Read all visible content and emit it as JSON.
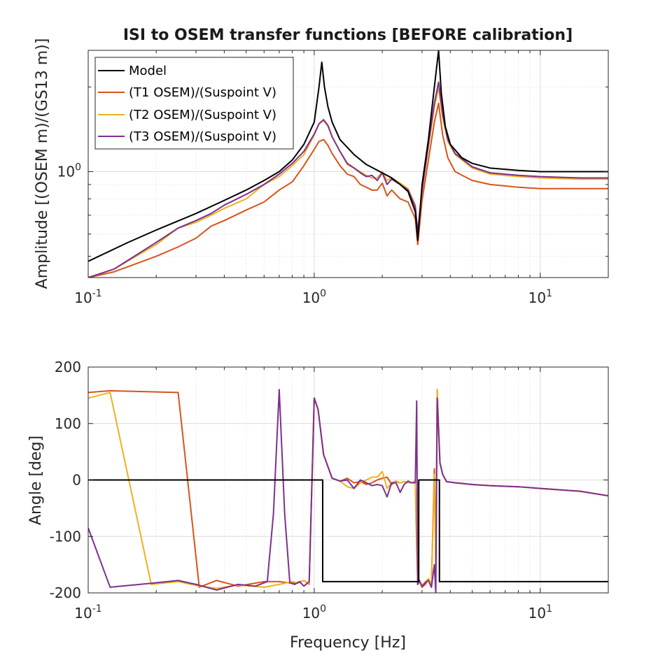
{
  "chart_data": [
    {
      "type": "line",
      "title": "ISI to OSEM transfer functions [BEFORE calibration]",
      "xlabel": "",
      "ylabel": "Amplitude [(OSEM m)/(GS13 m)]",
      "xscale": "log",
      "yscale": "log",
      "xlim": [
        0.1,
        20
      ],
      "ylim": [
        0.42,
        2.7
      ],
      "x_ticks": [
        0.1,
        1,
        10
      ],
      "x_tick_labels": [
        {
          "base": "10",
          "exp": "-1"
        },
        {
          "base": "10",
          "exp": "0"
        },
        {
          "base": "10",
          "exp": "1"
        }
      ],
      "y_ticks": [
        1
      ],
      "y_tick_labels": [
        {
          "base": "10",
          "exp": "0"
        }
      ],
      "grid": true,
      "legend_position": "top-left",
      "colors": {
        "Model": "#000000",
        "T1": "#d95319",
        "T2": "#edb120",
        "T3": "#7e2f8e"
      },
      "series": [
        {
          "name": "Model",
          "color": "#000000",
          "x": [
            0.1,
            0.15,
            0.2,
            0.3,
            0.4,
            0.5,
            0.6,
            0.7,
            0.8,
            0.9,
            1.0,
            1.05,
            1.08,
            1.11,
            1.15,
            1.2,
            1.3,
            1.5,
            1.7,
            2.0,
            2.2,
            2.4,
            2.6,
            2.8,
            2.87,
            3.0,
            3.2,
            3.4,
            3.55,
            3.65,
            3.8,
            4.0,
            4.5,
            5,
            6,
            8,
            10,
            15,
            20
          ],
          "y": [
            0.48,
            0.56,
            0.62,
            0.71,
            0.79,
            0.86,
            0.93,
            1.0,
            1.1,
            1.25,
            1.5,
            2.0,
            2.45,
            2.0,
            1.7,
            1.5,
            1.3,
            1.15,
            1.06,
            0.99,
            0.95,
            0.9,
            0.85,
            0.72,
            0.57,
            0.9,
            1.3,
            2.0,
            2.7,
            1.9,
            1.45,
            1.25,
            1.12,
            1.07,
            1.03,
            1.01,
            1.0,
            1.0,
            1.0
          ]
        },
        {
          "name": "(T1 OSEM)/(Suspoint V)",
          "color": "#d95319",
          "x": [
            0.1,
            0.13,
            0.2,
            0.25,
            0.3,
            0.35,
            0.4,
            0.5,
            0.6,
            0.7,
            0.8,
            0.9,
            1.0,
            1.05,
            1.1,
            1.15,
            1.2,
            1.3,
            1.4,
            1.5,
            1.6,
            1.7,
            1.8,
            1.9,
            2.0,
            2.1,
            2.2,
            2.4,
            2.6,
            2.8,
            2.87,
            3.0,
            3.2,
            3.4,
            3.55,
            3.7,
            3.9,
            4.2,
            5,
            6,
            8,
            10,
            15,
            20
          ],
          "y": [
            0.42,
            0.44,
            0.5,
            0.54,
            0.58,
            0.64,
            0.67,
            0.73,
            0.78,
            0.86,
            0.92,
            1.05,
            1.2,
            1.28,
            1.3,
            1.24,
            1.16,
            1.05,
            0.98,
            0.96,
            0.9,
            0.88,
            0.86,
            0.86,
            0.91,
            0.82,
            0.86,
            0.8,
            0.78,
            0.68,
            0.55,
            0.79,
            1.1,
            1.5,
            1.75,
            1.35,
            1.12,
            1.0,
            0.93,
            0.9,
            0.88,
            0.87,
            0.87,
            0.87
          ]
        },
        {
          "name": "(T2 OSEM)/(Suspoint V)",
          "color": "#edb120",
          "x": [
            0.1,
            0.13,
            0.2,
            0.25,
            0.3,
            0.35,
            0.4,
            0.5,
            0.6,
            0.7,
            0.8,
            0.9,
            1.0,
            1.05,
            1.1,
            1.15,
            1.2,
            1.3,
            1.4,
            1.5,
            1.6,
            1.7,
            1.8,
            1.9,
            2.0,
            2.1,
            2.2,
            2.4,
            2.6,
            2.8,
            2.87,
            3.0,
            3.2,
            3.4,
            3.55,
            3.7,
            3.9,
            4.2,
            5,
            6,
            8,
            10,
            15,
            20
          ],
          "y": [
            0.42,
            0.45,
            0.55,
            0.63,
            0.66,
            0.7,
            0.74,
            0.8,
            0.9,
            0.96,
            1.05,
            1.15,
            1.35,
            1.48,
            1.52,
            1.45,
            1.33,
            1.18,
            1.06,
            1.03,
            1.0,
            0.97,
            0.95,
            0.95,
            1.0,
            0.93,
            0.95,
            0.91,
            0.87,
            0.76,
            0.6,
            0.85,
            1.22,
            1.7,
            1.98,
            1.55,
            1.28,
            1.15,
            1.03,
            0.98,
            0.96,
            0.95,
            0.94,
            0.94
          ]
        },
        {
          "name": "(T3 OSEM)/(Suspoint V)",
          "color": "#7e2f8e",
          "x": [
            0.1,
            0.13,
            0.2,
            0.25,
            0.3,
            0.35,
            0.4,
            0.5,
            0.6,
            0.7,
            0.8,
            0.9,
            1.0,
            1.05,
            1.1,
            1.15,
            1.2,
            1.3,
            1.4,
            1.5,
            1.6,
            1.7,
            1.8,
            1.9,
            2.0,
            2.1,
            2.2,
            2.4,
            2.6,
            2.8,
            2.87,
            3.0,
            3.2,
            3.4,
            3.55,
            3.7,
            3.9,
            4.2,
            5,
            6,
            8,
            10,
            15,
            20
          ],
          "y": [
            0.42,
            0.45,
            0.56,
            0.63,
            0.67,
            0.71,
            0.76,
            0.83,
            0.9,
            0.98,
            1.07,
            1.18,
            1.36,
            1.48,
            1.53,
            1.46,
            1.33,
            1.18,
            1.07,
            1.03,
            0.99,
            0.96,
            0.97,
            0.93,
            0.99,
            0.9,
            0.94,
            0.9,
            0.86,
            0.75,
            0.61,
            0.86,
            1.25,
            1.75,
            2.08,
            1.6,
            1.3,
            1.16,
            1.04,
            0.99,
            0.97,
            0.96,
            0.95,
            0.95
          ]
        }
      ]
    },
    {
      "type": "line",
      "title": "",
      "xlabel": "Frequency [Hz]",
      "ylabel": "Angle [deg]",
      "xscale": "log",
      "yscale": "linear",
      "xlim": [
        0.1,
        20
      ],
      "ylim": [
        -200,
        200
      ],
      "x_ticks": [
        0.1,
        1,
        10
      ],
      "x_tick_labels": [
        {
          "base": "10",
          "exp": "-1"
        },
        {
          "base": "10",
          "exp": "0"
        },
        {
          "base": "10",
          "exp": "1"
        }
      ],
      "y_ticks": [
        -200,
        -100,
        0,
        100,
        200
      ],
      "y_tick_labels": [
        "-200",
        "-100",
        "0",
        "100",
        "200"
      ],
      "grid": true,
      "series": [
        {
          "name": "Model",
          "color": "#000000",
          "x": [
            0.1,
            1.09,
            1.09,
            2.9,
            2.9,
            3.58,
            3.58,
            20
          ],
          "y": [
            0,
            0,
            -180,
            -180,
            0,
            0,
            -180,
            -180
          ]
        },
        {
          "name": "(T1 OSEM)/(Suspoint V)",
          "color": "#d95319",
          "x": [
            0.1,
            0.125,
            0.25,
            0.31,
            0.37,
            0.46,
            0.6,
            0.7,
            0.8,
            0.85,
            0.9,
            0.95,
            1.0,
            1.04,
            1.1,
            1.2,
            1.3,
            1.4,
            1.5,
            1.6,
            1.7,
            1.8,
            1.9,
            2.0,
            2.1,
            2.2,
            2.3,
            2.4,
            2.5,
            2.6,
            2.7,
            2.8,
            2.84,
            2.87,
            2.92,
            3.0,
            3.1,
            3.2,
            3.3,
            3.4,
            3.45,
            3.5,
            3.6,
            3.7,
            3.85,
            4.2,
            5,
            6,
            8,
            10,
            15,
            20
          ],
          "y": [
            155,
            158,
            155,
            -190,
            -178,
            -188,
            -180,
            -180,
            -183,
            -182,
            -178,
            -185,
            145,
            125,
            45,
            3,
            -2,
            3,
            -5,
            -3,
            -8,
            -5,
            0,
            3,
            5,
            -8,
            -3,
            -5,
            -3,
            -5,
            -5,
            -2,
            -115,
            -185,
            -180,
            -190,
            -185,
            -175,
            -185,
            20,
            -150,
            160,
            30,
            10,
            -3,
            -5,
            -8,
            -10,
            -12,
            -15,
            -20,
            -28
          ]
        },
        {
          "name": "(T2 OSEM)/(Suspoint V)",
          "color": "#edb120",
          "x": [
            0.1,
            0.125,
            0.19,
            0.25,
            0.31,
            0.37,
            0.46,
            0.6,
            0.7,
            0.8,
            0.85,
            0.9,
            0.95,
            1.0,
            1.04,
            1.1,
            1.2,
            1.3,
            1.4,
            1.5,
            1.6,
            1.7,
            1.8,
            1.9,
            2.0,
            2.1,
            2.2,
            2.3,
            2.4,
            2.5,
            2.6,
            2.7,
            2.8,
            2.84,
            2.87,
            2.92,
            3.0,
            3.1,
            3.2,
            3.3,
            3.4,
            3.45,
            3.5,
            3.6,
            3.7,
            3.85,
            4.2,
            5,
            6,
            8,
            10,
            15,
            20
          ],
          "y": [
            145,
            155,
            -185,
            -180,
            -188,
            -192,
            -186,
            -190,
            -185,
            -180,
            -183,
            -178,
            -185,
            145,
            125,
            45,
            3,
            -2,
            -12,
            -15,
            -5,
            0,
            5,
            5,
            15,
            -15,
            -5,
            -2,
            -5,
            -3,
            -5,
            -5,
            -2,
            -80,
            -185,
            -180,
            -188,
            -180,
            -175,
            -185,
            10,
            -160,
            160,
            30,
            10,
            -3,
            -5,
            -8,
            -10,
            -12,
            -15,
            -20,
            -28
          ]
        },
        {
          "name": "(T3 OSEM)/(Suspoint V)",
          "color": "#7e2f8e",
          "x": [
            0.1,
            0.125,
            0.19,
            0.25,
            0.3,
            0.37,
            0.46,
            0.55,
            0.62,
            0.66,
            0.7,
            0.74,
            0.78,
            0.82,
            0.86,
            0.9,
            0.95,
            1.0,
            1.04,
            1.1,
            1.2,
            1.3,
            1.4,
            1.5,
            1.6,
            1.7,
            1.8,
            1.9,
            2.0,
            2.1,
            2.2,
            2.3,
            2.4,
            2.5,
            2.6,
            2.7,
            2.8,
            2.84,
            2.87,
            2.92,
            3.0,
            3.1,
            3.2,
            3.3,
            3.4,
            3.45,
            3.5,
            3.6,
            3.7,
            3.85,
            4.2,
            5,
            6,
            8,
            10,
            15,
            20
          ],
          "y": [
            -85,
            -190,
            -183,
            -178,
            -185,
            -195,
            -185,
            -188,
            -180,
            -60,
            160,
            -60,
            -182,
            -185,
            -180,
            -188,
            -180,
            145,
            125,
            45,
            3,
            -2,
            0,
            -15,
            0,
            -5,
            -10,
            -8,
            -10,
            -30,
            -5,
            -5,
            -22,
            -8,
            -2,
            -5,
            -5,
            140,
            -185,
            -178,
            -188,
            -182,
            -178,
            -190,
            -150,
            -200,
            145,
            30,
            10,
            -3,
            -5,
            -8,
            -10,
            -12,
            -15,
            -20,
            -28
          ]
        }
      ]
    }
  ]
}
